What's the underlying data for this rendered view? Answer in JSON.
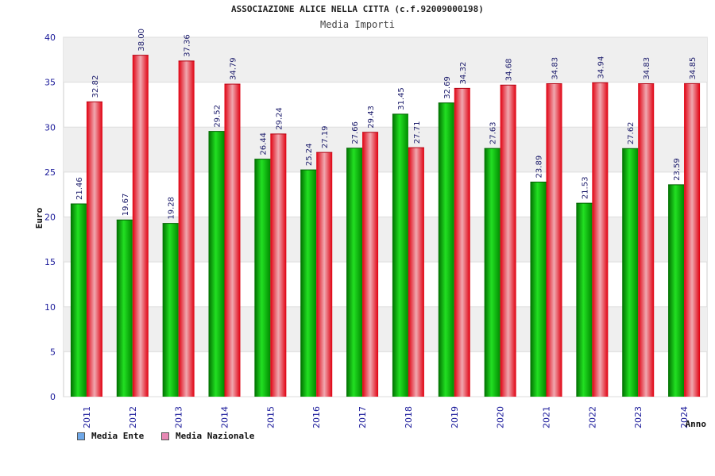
{
  "chart_data": {
    "type": "bar",
    "title": "ASSOCIAZIONE ALICE NELLA CITTA (c.f.92009000198)",
    "subtitle": "Media Importi",
    "ylabel": "Euro",
    "xlabel": "Anno",
    "ylim": [
      0,
      40
    ],
    "yticks": [
      "0",
      "5",
      "10",
      "15",
      "20",
      "25",
      "30",
      "35",
      "40"
    ],
    "categories": [
      "2011",
      "2012",
      "2013",
      "2014",
      "2015",
      "2016",
      "2017",
      "2018",
      "2019",
      "2020",
      "2021",
      "2022",
      "2023",
      "2024"
    ],
    "series": [
      {
        "name": "Media Ente",
        "color": "#00b800",
        "values": [
          21.46,
          19.67,
          19.28,
          29.52,
          26.44,
          25.24,
          27.66,
          31.45,
          32.69,
          27.63,
          23.89,
          21.53,
          27.62,
          23.59
        ],
        "labels": [
          "21.46",
          "19.67",
          "19.28",
          "29.52",
          "26.44",
          "25.24",
          "27.66",
          "31.45",
          "32.69",
          "27.63",
          "23.89",
          "21.53",
          "27.62",
          "23.59"
        ]
      },
      {
        "name": "Media Nazionale",
        "color": "#ee1c2c",
        "values": [
          32.82,
          38.0,
          37.36,
          34.79,
          29.24,
          27.19,
          29.43,
          27.71,
          34.32,
          34.68,
          34.83,
          34.94,
          34.83,
          34.85
        ],
        "labels": [
          "32.82",
          "38.00",
          "37.36",
          "34.79",
          "29.24",
          "27.19",
          "29.43",
          "27.71",
          "34.32",
          "34.68",
          "34.83",
          "34.94",
          "34.83",
          "34.85"
        ]
      }
    ],
    "legend": [
      {
        "label": "Media Ente",
        "color": "#6fa8e8"
      },
      {
        "label": "Media Nazionale",
        "color": "#e889b5"
      }
    ],
    "grid": true,
    "legend_position": "bottom-left"
  }
}
